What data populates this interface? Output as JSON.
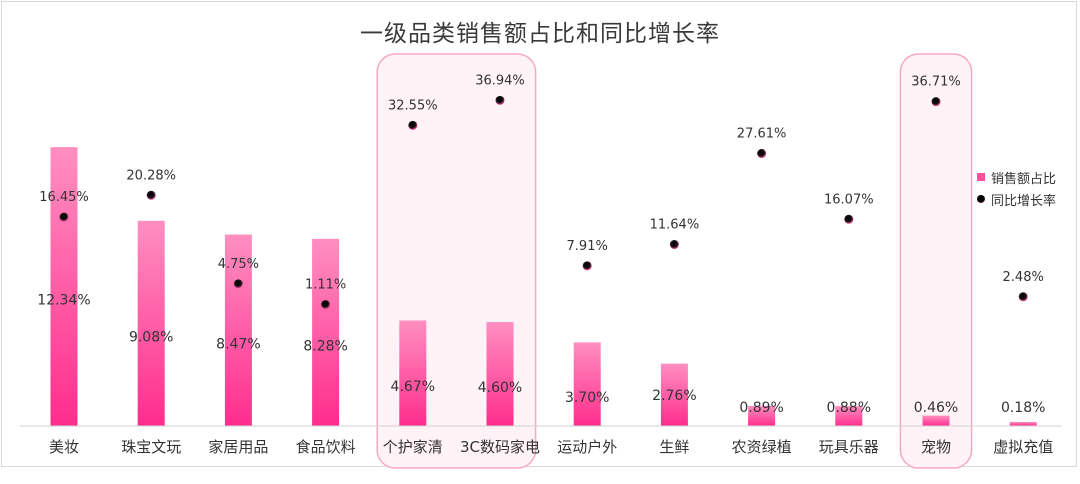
{
  "chart_data": {
    "type": "bar",
    "title": "一级品类销售额占比和同比增长率",
    "categories": [
      "美妆",
      "珠宝文玩",
      "家居用品",
      "食品饮料",
      "个护家清",
      "3C数码家电",
      "运动户外",
      "生鲜",
      "农资绿植",
      "玩具乐器",
      "宠物",
      "虚拟充值"
    ],
    "series": [
      {
        "name": "销售额占比",
        "kind": "bar",
        "values": [
          12.34,
          9.08,
          8.47,
          8.28,
          4.67,
          4.6,
          3.7,
          2.76,
          0.89,
          0.88,
          0.46,
          0.18
        ],
        "labels": [
          "12.34%",
          "9.08%",
          "8.47%",
          "8.28%",
          "4.67%",
          "4.60%",
          "3.70%",
          "2.76%",
          "0.89%",
          "0.88%",
          "0.46%",
          "0.18%"
        ],
        "color": "#ff4fa0"
      },
      {
        "name": "同比增长率",
        "kind": "scatter",
        "values": [
          16.45,
          20.28,
          4.75,
          1.11,
          32.55,
          36.94,
          7.91,
          11.64,
          27.61,
          16.07,
          36.71,
          2.48
        ],
        "labels": [
          "16.45%",
          "20.28%",
          "4.75%",
          "1.11%",
          "32.55%",
          "36.94%",
          "7.91%",
          "11.64%",
          "27.61%",
          "16.07%",
          "36.71%",
          "2.48%"
        ],
        "color": "#000000"
      }
    ],
    "highlighted_categories": [
      "个护家清",
      "3C数码家电",
      "宠物"
    ],
    "highlight_color": "#f7a8c8",
    "legend_position": "right",
    "grid": false
  }
}
